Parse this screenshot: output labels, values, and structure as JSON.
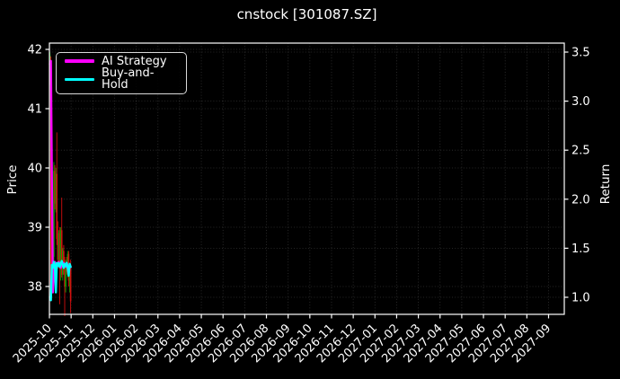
{
  "chart_data": {
    "type": "candlestick+line",
    "title": "cnstock [301087.SZ]",
    "ylabel_left": "Price",
    "ylabel_right": "Return",
    "legend_position": "upper-left",
    "grid": true,
    "background": "#000000",
    "text_color": "#ffffff",
    "x_tick_labels": [
      "2025-10",
      "2025-11",
      "2025-12",
      "2026-01",
      "2026-02",
      "2026-03",
      "2026-04",
      "2026-05",
      "2026-06",
      "2026-07",
      "2026-08",
      "2026-09",
      "2026-10",
      "2026-11",
      "2026-12",
      "2027-01",
      "2027-02",
      "2027-03",
      "2027-04",
      "2027-05",
      "2027-06",
      "2027-07",
      "2027-08",
      "2027-09"
    ],
    "left_ticks": [
      38,
      39,
      40,
      41,
      42
    ],
    "right_ticks": [
      "1.0",
      "1.5",
      "2.0",
      "2.5",
      "3.0",
      "3.5"
    ],
    "ylim_left": [
      37.45,
      42.1
    ],
    "ylim_right": [
      0.83,
      3.59
    ],
    "colors": {
      "up_candle": "#00a000",
      "down_candle": "#d40e0e",
      "grid": "#9a9a9a",
      "spine": "#ffffff"
    },
    "candles_month": "2025-10",
    "candles": [
      {
        "o": 41.55,
        "h": 41.95,
        "l": 41.4,
        "c": 41.9
      },
      {
        "o": 41.8,
        "h": 41.88,
        "l": 37.95,
        "c": 38.05
      },
      {
        "o": 38.6,
        "h": 38.75,
        "l": 37.9,
        "c": 38.1
      },
      {
        "o": 38.15,
        "h": 38.6,
        "l": 38.0,
        "c": 38.5
      },
      {
        "o": 38.5,
        "h": 40.1,
        "l": 38.4,
        "c": 39.95
      },
      {
        "o": 39.95,
        "h": 40.05,
        "l": 39.3,
        "c": 39.4
      },
      {
        "o": 39.4,
        "h": 40.0,
        "l": 39.25,
        "c": 39.9
      },
      {
        "o": 39.9,
        "h": 40.6,
        "l": 38.7,
        "c": 38.8
      },
      {
        "o": 38.8,
        "h": 39.1,
        "l": 38.3,
        "c": 38.45
      },
      {
        "o": 38.45,
        "h": 38.95,
        "l": 38.35,
        "c": 38.9
      },
      {
        "o": 38.9,
        "h": 39.0,
        "l": 37.7,
        "c": 38.3
      },
      {
        "o": 38.3,
        "h": 39.0,
        "l": 38.1,
        "c": 38.95
      },
      {
        "o": 38.95,
        "h": 39.5,
        "l": 38.15,
        "c": 38.2
      },
      {
        "o": 38.2,
        "h": 38.65,
        "l": 38.1,
        "c": 38.6
      },
      {
        "o": 38.6,
        "h": 38.7,
        "l": 38.2,
        "c": 38.3
      },
      {
        "o": 38.3,
        "h": 38.5,
        "l": 37.5,
        "c": 38.0
      },
      {
        "o": 38.0,
        "h": 38.45,
        "l": 37.9,
        "c": 38.4
      },
      {
        "o": 38.4,
        "h": 38.5,
        "l": 38.2,
        "c": 38.25
      },
      {
        "o": 38.25,
        "h": 38.6,
        "l": 38.15,
        "c": 38.55
      },
      {
        "o": 38.55,
        "h": 38.6,
        "l": 38.0,
        "c": 38.1
      },
      {
        "o": 38.1,
        "h": 38.4,
        "l": 37.9,
        "c": 38.35
      },
      {
        "o": 38.35,
        "h": 38.45,
        "l": 37.55,
        "c": 37.75
      }
    ],
    "series": [
      {
        "name": "AI Strategy",
        "color": "#ff00ff",
        "axis": "right",
        "values": [
          3.38,
          3.41,
          2.2,
          1.05,
          1.32,
          1.36,
          1.3,
          1.35,
          1.32,
          1.36,
          1.33,
          1.3,
          1.35,
          1.32,
          1.35,
          1.33,
          1.31,
          1.35,
          1.32,
          1.28,
          1.33,
          1.31
        ]
      },
      {
        "name": "Buy-and-Hold",
        "color": "#00ffff",
        "axis": "right",
        "values": [
          1.0,
          0.97,
          1.33,
          1.3,
          1.36,
          1.33,
          1.05,
          1.35,
          1.32,
          1.35,
          1.31,
          1.34,
          1.37,
          1.33,
          1.3,
          1.34,
          1.32,
          1.35,
          1.3,
          1.22,
          1.34,
          1.31
        ]
      }
    ]
  }
}
